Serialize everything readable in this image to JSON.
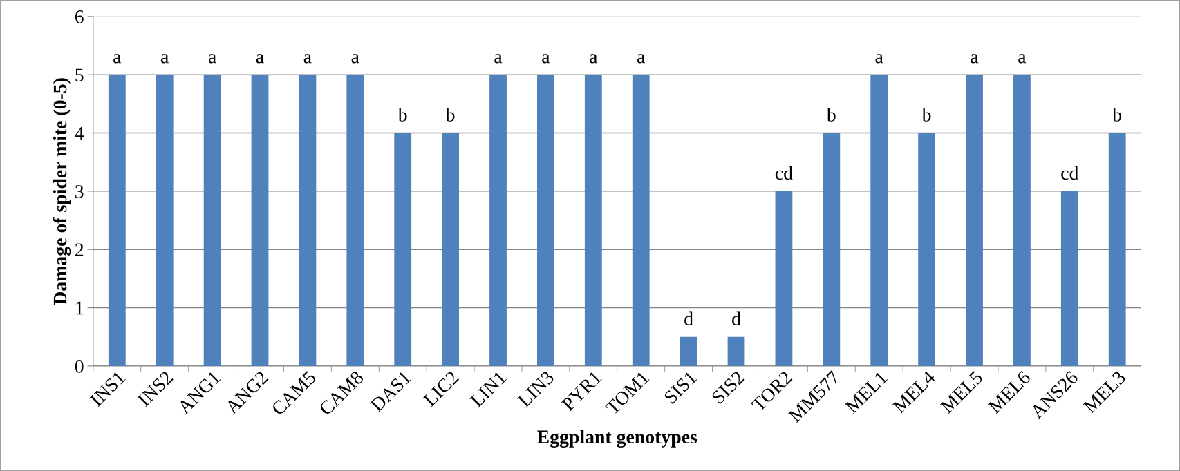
{
  "chart_data": {
    "type": "bar",
    "xlabel": "Eggplant genotypes",
    "ylabel": "Damage of spider mite (0-5)",
    "categories": [
      "INS1",
      "INS2",
      "ANG1",
      "ANG2",
      "CAM5",
      "CAM8",
      "DAS1",
      "LIC2",
      "LIN1",
      "LIN3",
      "PYR1",
      "TOM1",
      "SIS1",
      "SIS2",
      "TOR2",
      "MM577",
      "MEL1",
      "MEL4",
      "MEL5",
      "MEL6",
      "ANS26",
      "MEL3"
    ],
    "values": [
      5,
      5,
      5,
      5,
      5,
      5,
      4,
      4,
      5,
      5,
      5,
      5,
      0.5,
      0.5,
      3,
      4,
      5,
      4,
      5,
      5,
      3,
      4
    ],
    "color": "#4f81bd",
    "ylim": [
      0,
      6
    ],
    "yticks": [
      0,
      1,
      2,
      3,
      4,
      5,
      6
    ],
    "grid": "y",
    "annotations": [
      {
        "text": "a",
        "x": "INS1",
        "y": 5
      },
      {
        "text": "a",
        "x": "INS2",
        "y": 5
      },
      {
        "text": "a",
        "x": "ANG1",
        "y": 5
      },
      {
        "text": "a",
        "x": "ANG2",
        "y": 5
      },
      {
        "text": "a",
        "x": "CAM5",
        "y": 5
      },
      {
        "text": "a",
        "x": "CAM8",
        "y": 5
      },
      {
        "text": "b",
        "x": "DAS1",
        "y": 4
      },
      {
        "text": "b",
        "x": "LIC2",
        "y": 4
      },
      {
        "text": "a",
        "x": "LIN1",
        "y": 5
      },
      {
        "text": "a",
        "x": "LIN3",
        "y": 5
      },
      {
        "text": "a",
        "x": "PYR1",
        "y": 5
      },
      {
        "text": "a",
        "x": "TOM1",
        "y": 5
      },
      {
        "text": "d",
        "x": "SIS1",
        "y": 0.5
      },
      {
        "text": "d",
        "x": "SIS2",
        "y": 0.5
      },
      {
        "text": "cd",
        "x": "TOR2",
        "y": 3
      },
      {
        "text": "b",
        "x": "MM577",
        "y": 4
      },
      {
        "text": "a",
        "x": "MEL1",
        "y": 5
      },
      {
        "text": "b",
        "x": "MEL4",
        "y": 4
      },
      {
        "text": "a",
        "x": "MEL5",
        "y": 5
      },
      {
        "text": "a",
        "x": "MEL6",
        "y": 5
      },
      {
        "text": "cd",
        "x": "ANS26",
        "y": 3
      },
      {
        "text": "b",
        "x": "MEL3",
        "y": 4
      }
    ]
  }
}
